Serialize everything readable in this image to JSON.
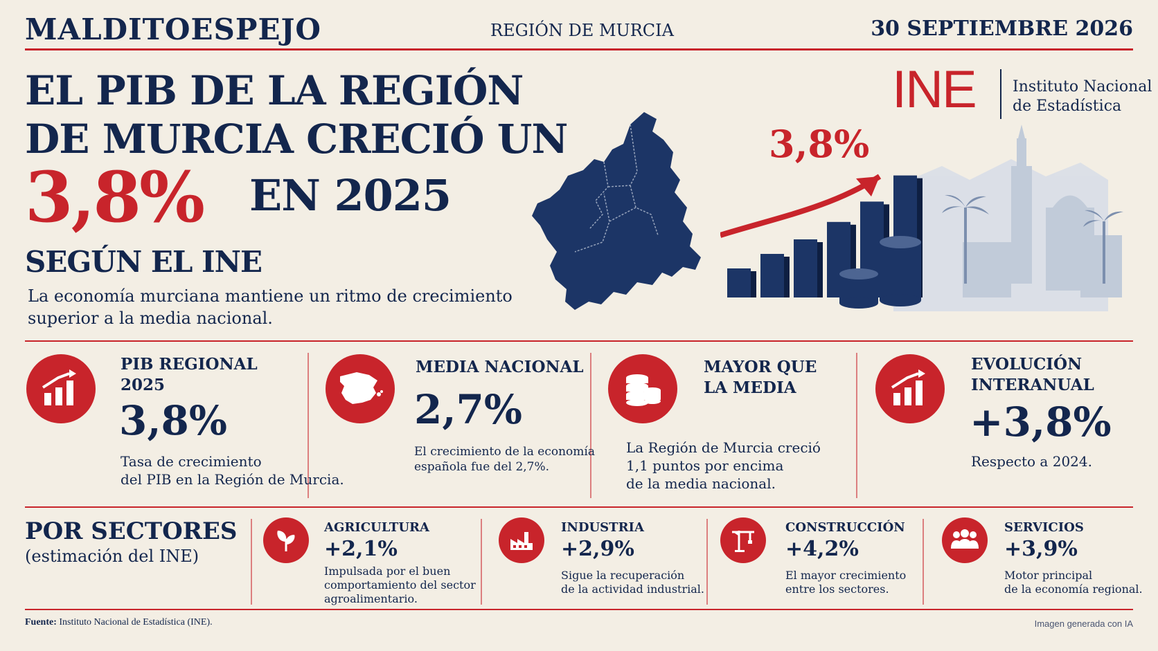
{
  "header": {
    "masthead": "MALDITOESPEJO",
    "region": "REGIÓN DE MURCIA",
    "date": "30 SEPTIEMBRE 2026"
  },
  "headline": {
    "line1": "EL PIB DE LA REGIÓN",
    "line2": "DE MURCIA CRECIÓ UN",
    "percent": "3,8%",
    "line3": "EN 2025",
    "line4": "SEGÚN EL INE",
    "lead": "La economía murciana mantiene un ritmo de crecimiento superior a la media nacional."
  },
  "illustration": {
    "growth_label": "3,8%",
    "ine_logo": "INE",
    "ine_name_1": "Instituto Nacional",
    "ine_name_2": "de Estadística",
    "bar_levels": [
      0.2,
      0.3,
      0.4,
      0.52,
      0.66,
      0.84
    ]
  },
  "kpis": [
    {
      "title_1": "PIB REGIONAL",
      "title_2": "2025",
      "value": "3,8%",
      "desc_1": "Tasa de crecimiento",
      "desc_2": "del PIB en la Región de Murcia.",
      "icon": "bar-chart-up-icon"
    },
    {
      "title_1": "MEDIA NACIONAL",
      "value": "2,7%",
      "desc_1": "El crecimiento de la economía",
      "desc_2": "española fue del 2,7%.",
      "icon": "spain-map-icon"
    },
    {
      "title_1": "MAYOR QUE",
      "title_2": "LA MEDIA",
      "desc_1": "La Región de Murcia creció",
      "desc_2": "1,1 puntos por encima",
      "desc_3": "de la media nacional.",
      "icon": "coin-stack-icon"
    },
    {
      "title_1": "EVOLUCIÓN",
      "title_2": "INTERANUAL",
      "value": "+3,8%",
      "desc_1": "Respecto a 2024.",
      "icon": "bar-chart-up-icon"
    }
  ],
  "sectors": {
    "title": "POR SECTORES",
    "subtitle": "(estimación del INE)",
    "items": [
      {
        "name": "AGRICULTURA",
        "value": "+2,1%",
        "desc_1": "Impulsada por el buen",
        "desc_2": "comportamiento del sector",
        "desc_3": "agroalimentario.",
        "icon": "plant-icon"
      },
      {
        "name": "INDUSTRIA",
        "value": "+2,9%",
        "desc_1": "Sigue la recuperación",
        "desc_2": "de la actividad industrial.",
        "icon": "factory-icon"
      },
      {
        "name": "CONSTRUCCIÓN",
        "value": "+4,2%",
        "desc_1": "El mayor crecimiento",
        "desc_2": "entre los sectores.",
        "icon": "crane-icon"
      },
      {
        "name": "SERVICIOS",
        "value": "+3,9%",
        "desc_1": "Motor principal",
        "desc_2": "de la economía regional.",
        "icon": "people-icon"
      }
    ]
  },
  "footer": {
    "source_label": "Fuente:",
    "source_text": "Instituto Nacional de Estadística (INE).",
    "ai_note": "Imagen generada con IA"
  },
  "colors": {
    "accent": "#c8242b",
    "navy": "#13264d",
    "background": "#f3eee4"
  }
}
